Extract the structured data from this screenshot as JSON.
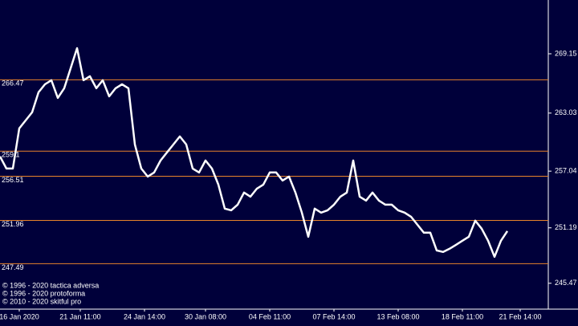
{
  "chart_data": {
    "type": "line",
    "series": [
      {
        "name": "Price",
        "color": "#ffffff",
        "values": [
          258.55,
          257.31,
          257.31,
          261.45,
          262.28,
          263.11,
          265.18,
          266.0,
          266.42,
          264.6,
          265.59,
          267.66,
          269.73,
          266.42,
          266.83,
          265.59,
          266.42,
          264.76,
          265.59,
          266.0,
          265.59,
          259.79,
          257.31,
          256.48,
          256.9,
          258.14,
          258.97,
          259.79,
          260.62,
          259.79,
          257.31,
          256.9,
          258.14,
          257.31,
          255.65,
          253.17,
          253.0,
          253.58,
          254.83,
          254.41,
          255.24,
          255.65,
          256.9,
          256.9,
          256.07,
          256.48,
          254.83,
          252.76,
          250.27,
          253.17,
          252.76,
          253.0,
          253.58,
          254.41,
          254.83,
          258.14,
          254.41,
          254.0,
          254.83,
          254.0,
          253.58,
          253.58,
          253.0,
          252.76,
          252.34,
          251.51,
          250.69,
          250.69,
          248.86,
          248.7,
          249.03,
          249.44,
          249.86,
          250.27,
          251.93,
          251.1,
          249.86,
          248.2,
          249.86,
          250.85
        ]
      }
    ],
    "xlim": [
      0,
      85.375
    ],
    "xticks": [
      {
        "value": 3,
        "label": "16 Jan 2020"
      },
      {
        "value": 12.5,
        "label": "21 Jan 11:00"
      },
      {
        "value": 22.5,
        "label": "24 Jan 14:00"
      },
      {
        "value": 32,
        "label": "30 Jan 08:00"
      },
      {
        "value": 42,
        "label": "04 Feb 11:00"
      },
      {
        "value": 52,
        "label": "07 Feb 14:00"
      },
      {
        "value": 62,
        "label": "13 Feb 08:00"
      },
      {
        "value": 72,
        "label": "18 Feb 11:00"
      },
      {
        "value": 81,
        "label": "21 Feb 14:00"
      }
    ],
    "ylim": [
      242.8,
      274.7
    ],
    "yticks": [
      269.15,
      263.03,
      257.04,
      251.19,
      245.47
    ],
    "levels": [
      266.47,
      259.1,
      256.51,
      251.96,
      247.49
    ],
    "level_color": "#e8832a",
    "annotations": [
      "© 1996 - 2020 tactica adversa",
      "© 1996 - 2020 protoforma",
      "© 2010 - 2020 skitful pro"
    ]
  }
}
